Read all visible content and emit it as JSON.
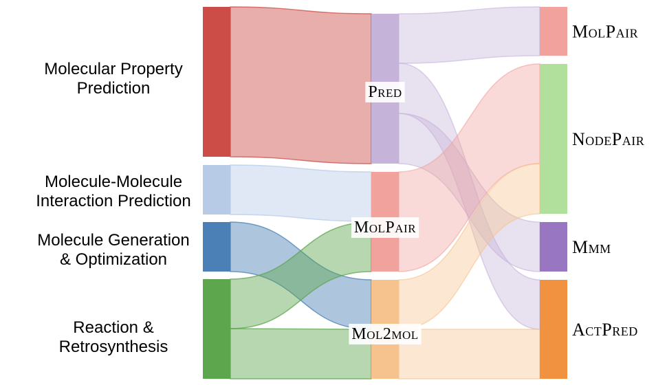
{
  "diagram": {
    "type": "sankey",
    "colors": {
      "prop": "#cc4c47",
      "mmi": "#b7cbe7",
      "gen": "#4a80b5",
      "rxn": "#5ea64e",
      "pred": "#c5b3d9",
      "molpair": "#f2a29d",
      "mol2mol": "#f6c38e",
      "r_molpair": "#f2a29d",
      "r_nodepair": "#b0e09c",
      "r_mmm": "#9976c2",
      "r_actpred": "#f19240"
    },
    "left_nodes": [
      {
        "id": "prop",
        "lines": [
          "Molecular Property",
          "Prediction"
        ],
        "value": 6
      },
      {
        "id": "mmi",
        "lines": [
          "Molecule-Molecule",
          "Interaction Prediction"
        ],
        "value": 2
      },
      {
        "id": "gen",
        "lines": [
          "Molecule Generation",
          "& Optimization"
        ],
        "value": 2
      },
      {
        "id": "rxn",
        "lines": [
          "Reaction &",
          "Retrosynthesis"
        ],
        "value": 4
      }
    ],
    "mid_nodes": [
      {
        "id": "pred",
        "label": "Pred",
        "value": 6
      },
      {
        "id": "molpair",
        "label": "MolPair",
        "value": 4
      },
      {
        "id": "mol2mol",
        "label": "Mol2mol",
        "value": 4
      }
    ],
    "right_nodes": [
      {
        "id": "r_molpair",
        "label": "MolPair",
        "value": 2
      },
      {
        "id": "r_nodepair",
        "label": "NodePair",
        "value": 6
      },
      {
        "id": "r_mmm",
        "label": "Mmm",
        "value": 2
      },
      {
        "id": "r_actpred",
        "label": "ActPred",
        "value": 4
      }
    ],
    "links_left": [
      {
        "source": "prop",
        "target": "pred",
        "value": 6
      },
      {
        "source": "mmi",
        "target": "molpair",
        "value": 2
      },
      {
        "source": "gen",
        "target": "mol2mol",
        "value": 2
      },
      {
        "source": "rxn",
        "target": "molpair",
        "value": 2
      },
      {
        "source": "rxn",
        "target": "mol2mol",
        "value": 2
      }
    ],
    "links_right": [
      {
        "source": "pred",
        "target": "r_molpair",
        "value": 2
      },
      {
        "source": "pred",
        "target": "r_actpred",
        "value": 2
      },
      {
        "source": "pred",
        "target": "r_mmm",
        "value": 2
      },
      {
        "source": "molpair",
        "target": "r_nodepair",
        "value": 4
      },
      {
        "source": "mol2mol",
        "target": "r_nodepair",
        "value": 2
      },
      {
        "source": "mol2mol",
        "target": "r_actpred",
        "value": 2
      }
    ]
  }
}
